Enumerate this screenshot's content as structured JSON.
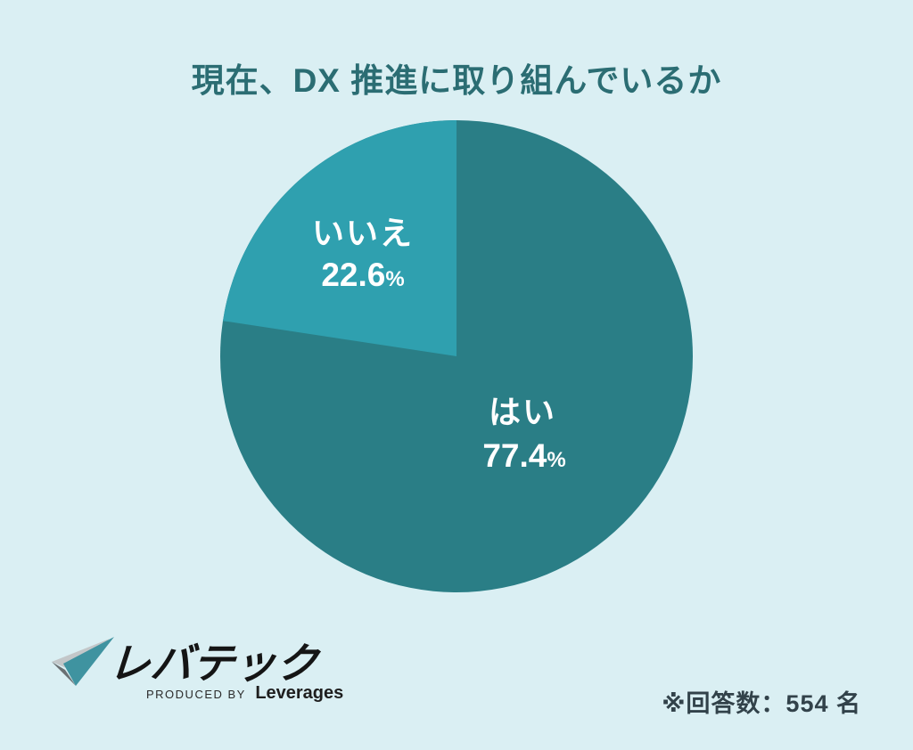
{
  "title": "現在、DX 推進に取り組んでいるか",
  "chart_data": {
    "type": "pie",
    "title": "現在、DX 推進に取り組んでいるか",
    "labels": [
      "はい",
      "いいえ"
    ],
    "values": [
      77.4,
      22.6
    ],
    "value_suffix": "%",
    "colors": [
      "#2A7E86",
      "#2FA0AF"
    ],
    "start_angle": "12-o'clock",
    "direction": "yes clockwise from top; no fills remaining counter-clockwise wedge",
    "legend_position": "labels inside slices"
  },
  "colors": {
    "background": "#DAEFF3",
    "title": "#2B6D73",
    "note": "#32424A",
    "label_text": "#FFFFFF",
    "logo_black": "#151515",
    "logo_teal": "#3F93A0",
    "logo_silver": "#C3C7C9",
    "logo_dark": "#6A7073"
  },
  "footer": {
    "logo": {
      "brand": "レバテック",
      "produced_by": "PRODUCED BY",
      "producer": "Leverages"
    },
    "note": "※回答数：554 名"
  }
}
